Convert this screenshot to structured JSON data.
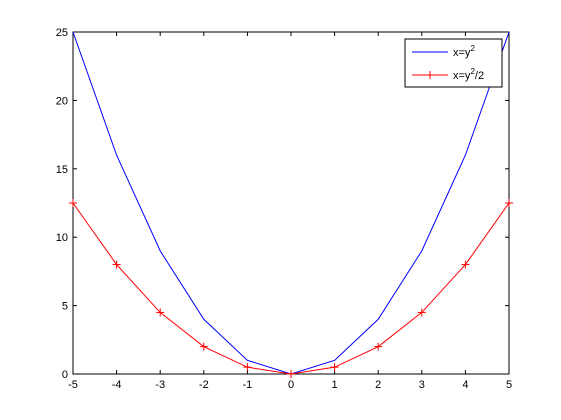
{
  "chart_data": {
    "type": "line",
    "x": [
      -5,
      -4,
      -3,
      -2,
      -1,
      0,
      1,
      2,
      3,
      4,
      5
    ],
    "series": [
      {
        "name": "x=y^2",
        "legend_parts": [
          "x=y",
          "2",
          ""
        ],
        "color": "#0000ff",
        "marker": "none",
        "values": [
          25,
          16,
          9,
          4,
          1,
          0,
          1,
          4,
          9,
          16,
          25
        ]
      },
      {
        "name": "x=y^2/2",
        "legend_parts": [
          "x=y",
          "2",
          "/2"
        ],
        "color": "#ff0000",
        "marker": "plus",
        "values": [
          12.5,
          8,
          4.5,
          2,
          0.5,
          0,
          0.5,
          2,
          4.5,
          8,
          12.5
        ]
      }
    ],
    "xlim": [
      -5,
      5
    ],
    "ylim": [
      0,
      25
    ],
    "xticks": [
      "-5",
      "-4",
      "-3",
      "-2",
      "-1",
      "0",
      "1",
      "2",
      "3",
      "4",
      "5"
    ],
    "yticks": [
      "0",
      "5",
      "10",
      "15",
      "20",
      "25"
    ],
    "grid": false,
    "legend_position": "top-right",
    "title": "",
    "xlabel": "",
    "ylabel": ""
  }
}
